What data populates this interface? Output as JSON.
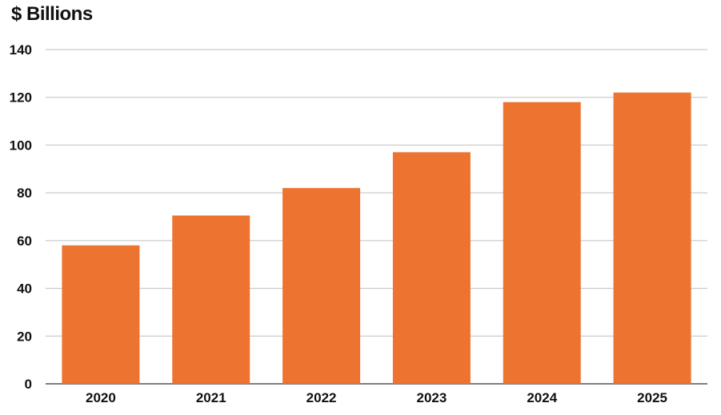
{
  "chart_data": {
    "type": "bar",
    "ylabel": "$ Billions",
    "xlabel": "",
    "categories": [
      "2020",
      "2021",
      "2022",
      "2023",
      "2024",
      "2025"
    ],
    "values": [
      58,
      70.5,
      82,
      97,
      118,
      122
    ],
    "ylim": [
      0,
      140
    ],
    "yticks": [
      0,
      20,
      40,
      60,
      80,
      100,
      120,
      140
    ],
    "grid": true,
    "legend": "none",
    "colors": {
      "bar": "#ED7430",
      "grid": "#bfbfbf",
      "axis": "#555555",
      "text": "#111111"
    }
  }
}
